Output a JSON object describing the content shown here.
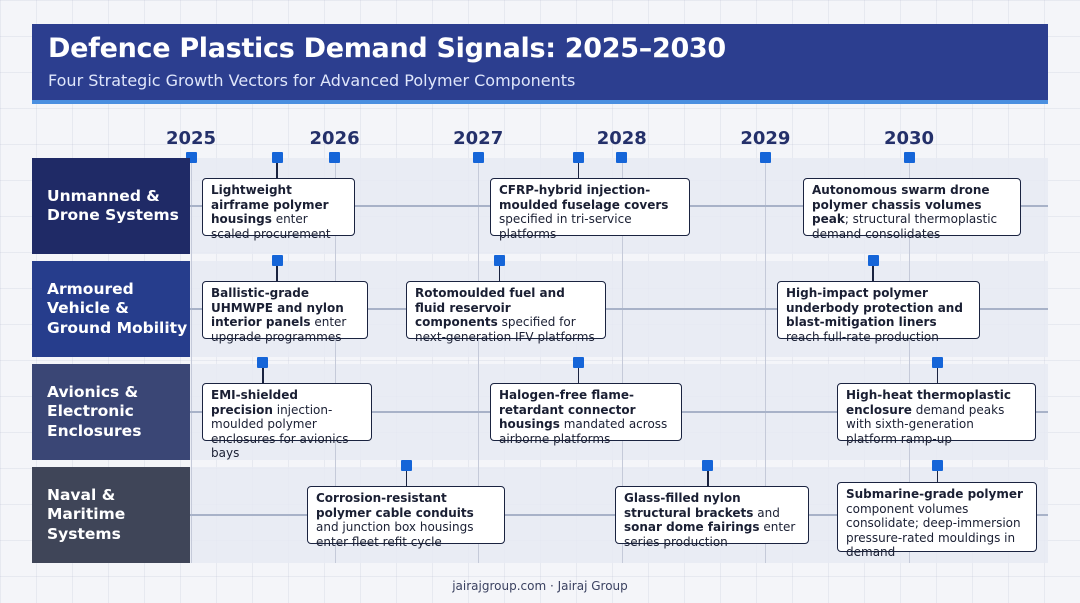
{
  "header": {
    "title": "Defence Plastics Demand Signals: 2025–2030",
    "subtitle": "Four Strategic Growth Vectors for Advanced Polymer Components"
  },
  "timeline": {
    "years": [
      "2025",
      "2026",
      "2027",
      "2028",
      "2029",
      "2030"
    ]
  },
  "lanes": [
    {
      "label": "Unmanned & Drone Systems",
      "color": "#1f2a66",
      "events": [
        {
          "bold": "Lightweight airframe polymer housings",
          "text": " enter scaled procurement",
          "date": 2025.6
        },
        {
          "bold": "CFRP-hybrid injection-moulded fuselage covers",
          "text": " specified in tri-service platforms",
          "date": 2027.7
        },
        {
          "bold": "Autonomous swarm drone polymer chassis volumes peak",
          "text": "; structural thermoplastic demand consolidates",
          "date": 2030.0
        }
      ]
    },
    {
      "label": "Armoured Vehicle & Ground Mobility",
      "color": "#263d8c",
      "events": [
        {
          "bold": "Ballistic-grade UHMWPE and nylon interior panels",
          "text": " enter upgrade programmes",
          "date": 2025.6
        },
        {
          "bold": "Rotomoulded fuel and fluid reservoir components",
          "text": " specified for next-generation IFV platforms",
          "date": 2027.15
        },
        {
          "bold": "High-impact polymer underbody protection and blast-mitigation liners",
          "text": " reach full-rate production",
          "date": 2029.75
        }
      ]
    },
    {
      "label": "Avionics & Electronic Enclosures",
      "color": "#3a4675",
      "events": [
        {
          "bold": "EMI-shielded precision",
          "text": " injection-moulded polymer enclosures for avionics bays",
          "date": 2025.5
        },
        {
          "bold": "Halogen-free flame-retardant connector housings",
          "text": " mandated across airborne platforms",
          "date": 2027.7
        },
        {
          "bold": "High-heat thermoplastic enclosure",
          "text": " demand peaks with sixth-generation platform ramp-up",
          "date": 2030.2
        }
      ]
    },
    {
      "label": "Naval & Maritime Systems",
      "color": "#3f4558",
      "events": [
        {
          "bold": "Corrosion-resistant polymer cable conduits",
          "text": " and junction box housings enter fleet refit cycle",
          "date": 2026.5
        },
        {
          "bold": "Glass-filled nylon structural brackets",
          "text": " and ",
          "bold2": "sonar dome fairings",
          "text2": " enter series production",
          "date": 2028.6
        },
        {
          "bold": "Submarine-grade polymer",
          "text": " component volumes consolidate; deep-immersion pressure-rated mouldings in demand",
          "date": 2030.2
        }
      ]
    }
  ],
  "footer": "jairajgroup.com · Jairaj Group"
}
